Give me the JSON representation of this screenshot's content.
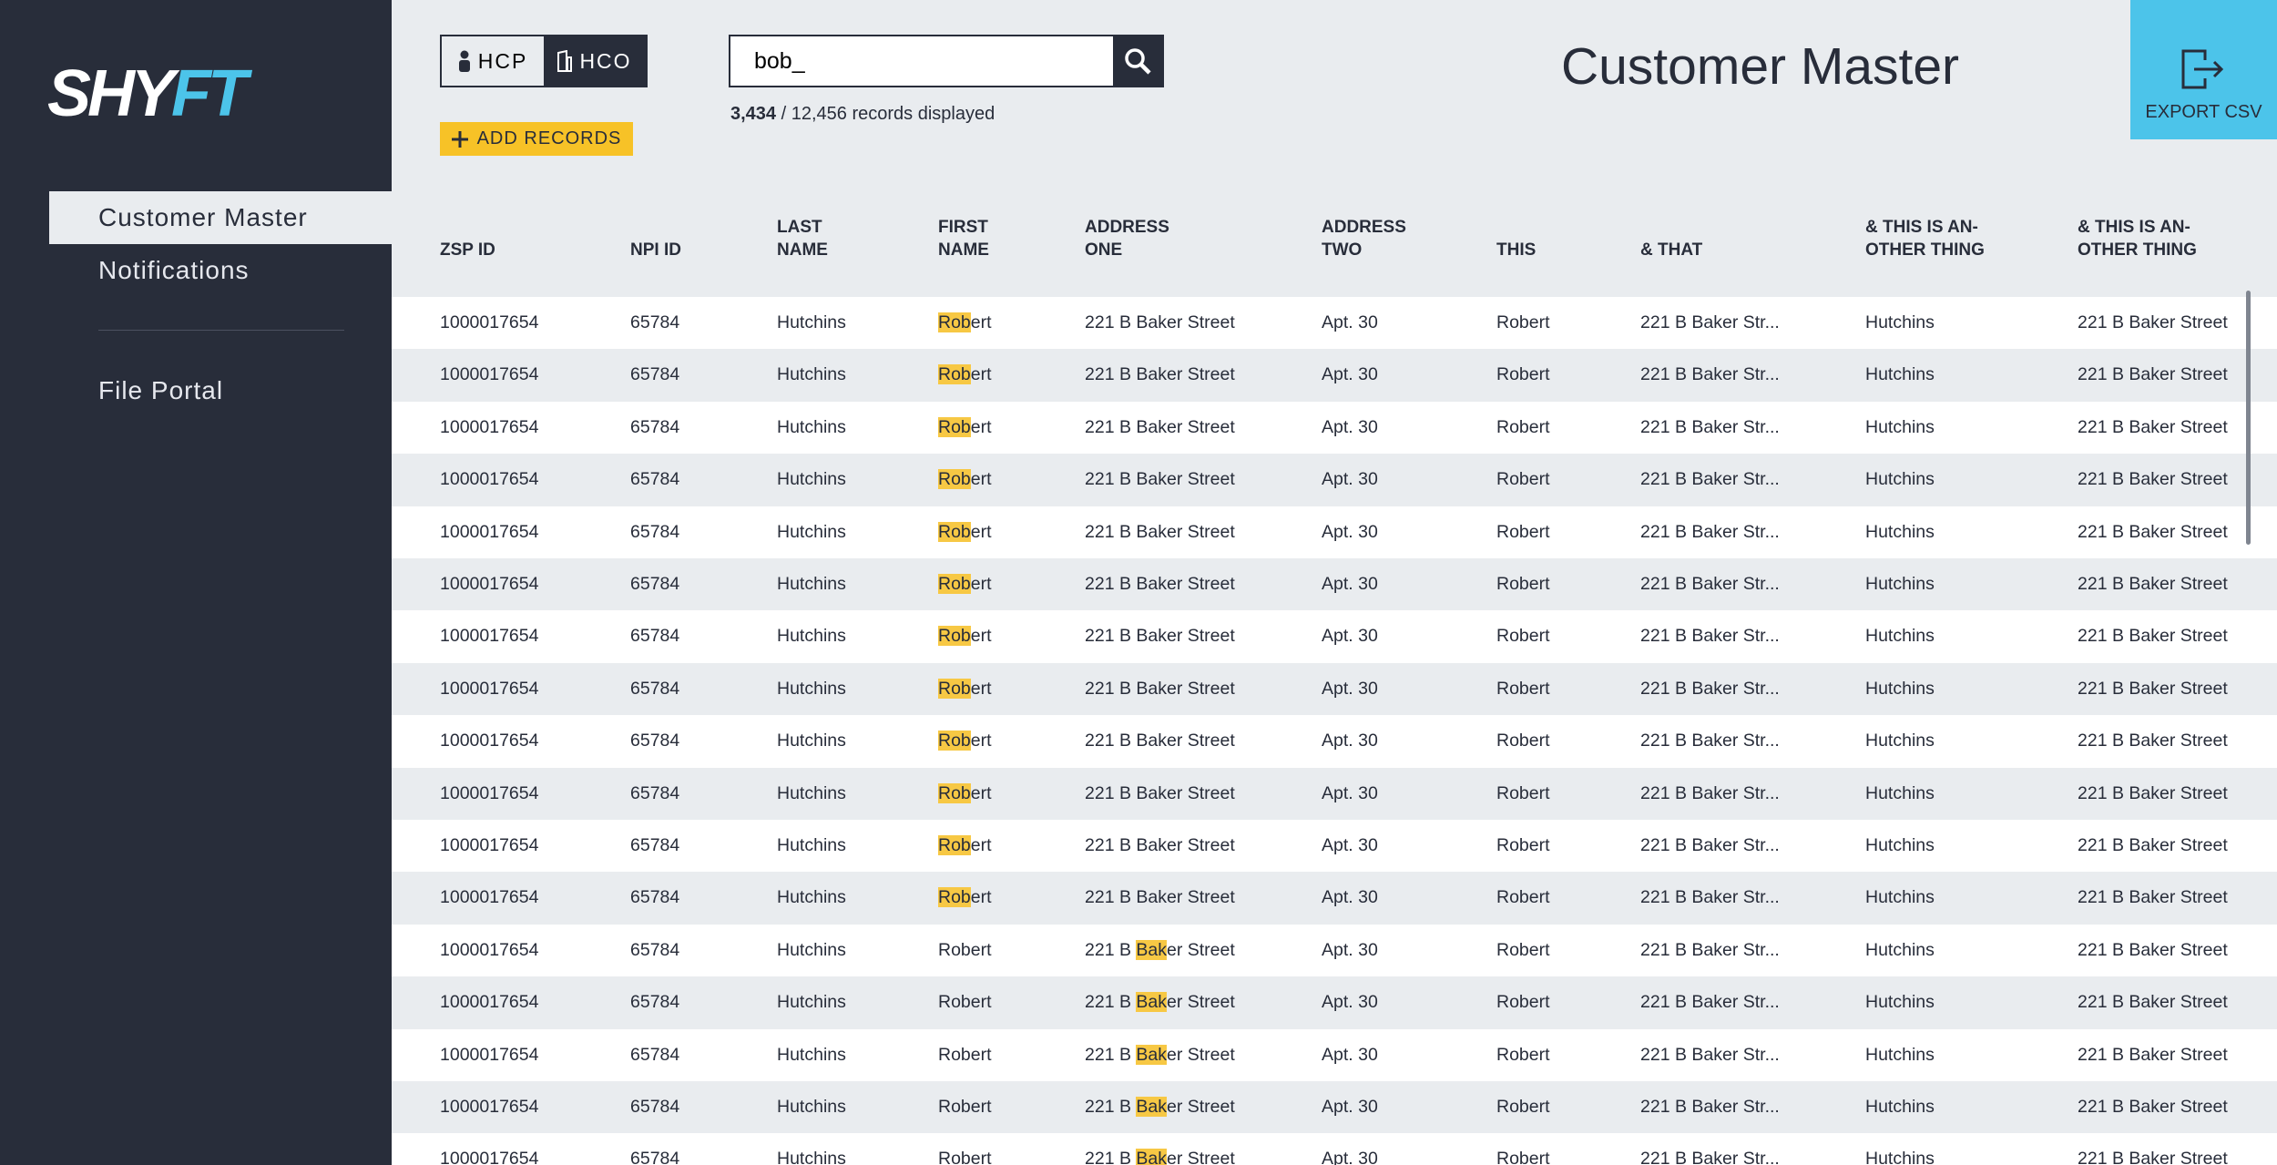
{
  "sidebar": {
    "logo": {
      "white": "SHY",
      "blue": "FT"
    },
    "nav": [
      "Customer Master",
      "Notifications"
    ],
    "nav2": [
      "File Portal"
    ]
  },
  "toolbar": {
    "toggle": [
      "HCP",
      "HCO"
    ],
    "search": "bob_",
    "records": {
      "shown": "3,434",
      "total": "/ 12,456 records displayed"
    },
    "add": "ADD RECORDS",
    "title": "Customer Master",
    "export": "EXPORT CSV"
  },
  "table": {
    "columns": [
      "ZSP ID",
      "NPI ID",
      "LAST\nNAME",
      "FIRST\nNAME",
      "ADDRESS\nONE",
      "ADDRESS\nTWO",
      "THIS",
      "& THAT",
      "& THIS IS AN-\nOTHER THING",
      "& THIS IS AN-\nOTHER THING"
    ],
    "rows": [
      [
        "1000017654",
        "65784",
        "Hutchins",
        {
          "match": "Rob",
          "after": "ert"
        },
        "221 B Baker Street",
        "Apt. 30",
        "Robert",
        "221 B Baker Str...",
        "Hutchins",
        "221 B Baker Street"
      ],
      [
        "1000017654",
        "65784",
        "Hutchins",
        {
          "match": "Rob",
          "after": "ert"
        },
        "221 B Baker Street",
        "Apt. 30",
        "Robert",
        "221 B Baker Str...",
        "Hutchins",
        "221 B Baker Street"
      ],
      [
        "1000017654",
        "65784",
        "Hutchins",
        {
          "match": "Rob",
          "after": "ert"
        },
        "221 B Baker Street",
        "Apt. 30",
        "Robert",
        "221 B Baker Str...",
        "Hutchins",
        "221 B Baker Street"
      ],
      [
        "1000017654",
        "65784",
        "Hutchins",
        {
          "match": "Rob",
          "after": "ert"
        },
        "221 B Baker Street",
        "Apt. 30",
        "Robert",
        "221 B Baker Str...",
        "Hutchins",
        "221 B Baker Street"
      ],
      [
        "1000017654",
        "65784",
        "Hutchins",
        {
          "match": "Rob",
          "after": "ert"
        },
        "221 B Baker Street",
        "Apt. 30",
        "Robert",
        "221 B Baker Str...",
        "Hutchins",
        "221 B Baker Street"
      ],
      [
        "1000017654",
        "65784",
        "Hutchins",
        {
          "match": "Rob",
          "after": "ert"
        },
        "221 B Baker Street",
        "Apt. 30",
        "Robert",
        "221 B Baker Str...",
        "Hutchins",
        "221 B Baker Street"
      ],
      [
        "1000017654",
        "65784",
        "Hutchins",
        {
          "match": "Rob",
          "after": "ert"
        },
        "221 B Baker Street",
        "Apt. 30",
        "Robert",
        "221 B Baker Str...",
        "Hutchins",
        "221 B Baker Street"
      ],
      [
        "1000017654",
        "65784",
        "Hutchins",
        {
          "match": "Rob",
          "after": "ert"
        },
        "221 B Baker Street",
        "Apt. 30",
        "Robert",
        "221 B Baker Str...",
        "Hutchins",
        "221 B Baker Street"
      ],
      [
        "1000017654",
        "65784",
        "Hutchins",
        {
          "match": "Rob",
          "after": "ert"
        },
        "221 B Baker Street",
        "Apt. 30",
        "Robert",
        "221 B Baker Str...",
        "Hutchins",
        "221 B Baker Street"
      ],
      [
        "1000017654",
        "65784",
        "Hutchins",
        {
          "match": "Rob",
          "after": "ert"
        },
        "221 B Baker Street",
        "Apt. 30",
        "Robert",
        "221 B Baker Str...",
        "Hutchins",
        "221 B Baker Street"
      ],
      [
        "1000017654",
        "65784",
        "Hutchins",
        {
          "match": "Rob",
          "after": "ert"
        },
        "221 B Baker Street",
        "Apt. 30",
        "Robert",
        "221 B Baker Str...",
        "Hutchins",
        "221 B Baker Street"
      ],
      [
        "1000017654",
        "65784",
        "Hutchins",
        {
          "match": "Rob",
          "after": "ert"
        },
        "221 B Baker Street",
        "Apt. 30",
        "Robert",
        "221 B Baker Str...",
        "Hutchins",
        "221 B Baker Street"
      ],
      [
        "1000017654",
        "65784",
        "Hutchins",
        "Robert",
        {
          "before": "221 B ",
          "match": "Bak",
          "after": "er Street"
        },
        "Apt. 30",
        "Robert",
        "221 B Baker Str...",
        "Hutchins",
        "221 B Baker Street"
      ],
      [
        "1000017654",
        "65784",
        "Hutchins",
        "Robert",
        {
          "before": "221 B ",
          "match": "Bak",
          "after": "er Street"
        },
        "Apt. 30",
        "Robert",
        "221 B Baker Str...",
        "Hutchins",
        "221 B Baker Street"
      ],
      [
        "1000017654",
        "65784",
        "Hutchins",
        "Robert",
        {
          "before": "221 B ",
          "match": "Bak",
          "after": "er Street"
        },
        "Apt. 30",
        "Robert",
        "221 B Baker Str...",
        "Hutchins",
        "221 B Baker Street"
      ],
      [
        "1000017654",
        "65784",
        "Hutchins",
        "Robert",
        {
          "before": "221 B ",
          "match": "Bak",
          "after": "er Street"
        },
        "Apt. 30",
        "Robert",
        "221 B Baker Str...",
        "Hutchins",
        "221 B Baker Street"
      ],
      [
        "1000017654",
        "65784",
        "Hutchins",
        "Robert",
        {
          "before": "221 B ",
          "match": "Bak",
          "after": "er Street"
        },
        "Apt. 30",
        "Robert",
        "221 B Baker Str...",
        "Hutchins",
        "221 B Baker Street"
      ]
    ]
  }
}
